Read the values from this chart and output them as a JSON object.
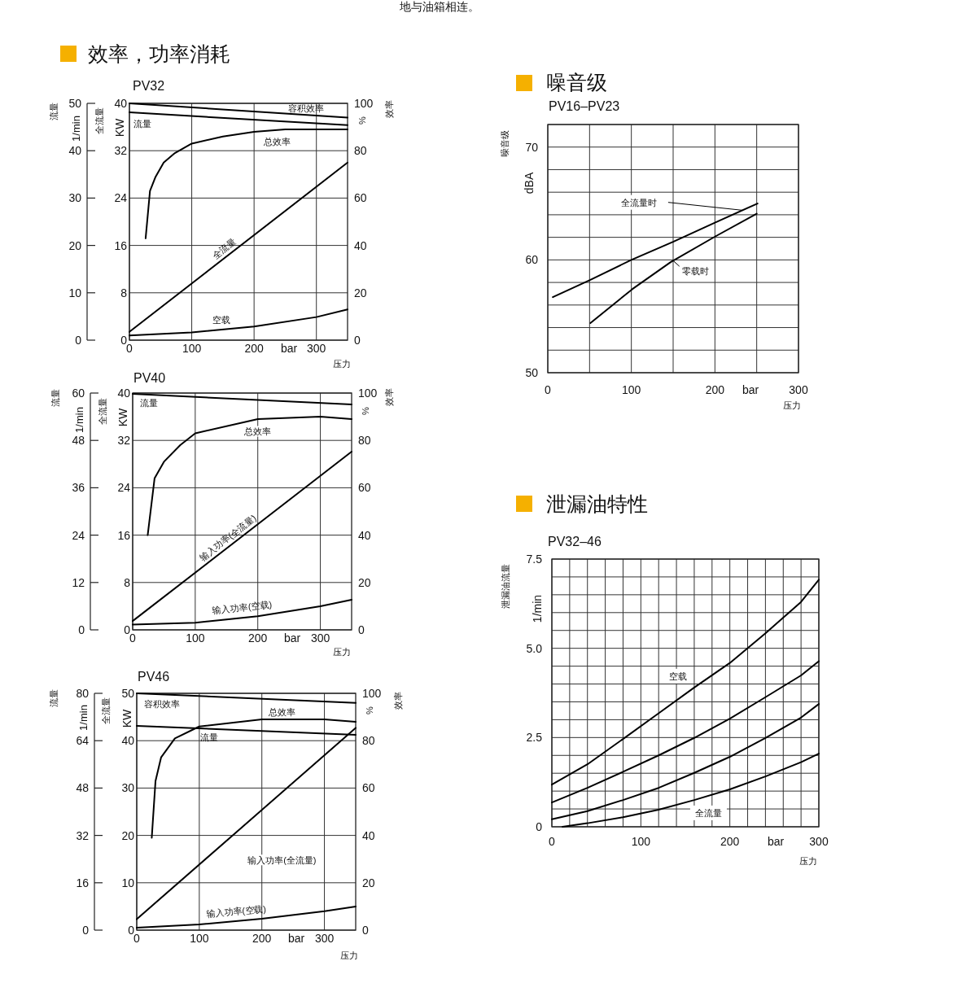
{
  "chart_data": [
    {
      "type": "line",
      "title": "效率，功率消耗",
      "subtitle": "PV32",
      "xlabel": "bar",
      "ylabel": "KW",
      "y2label": "%",
      "y3label": "1/min",
      "annotations": [
        "地与油箱相连。",
        "流量",
        "全流量",
        "效率",
        "压力"
      ],
      "grid": true,
      "xlim": [
        0,
        350
      ],
      "xticks": [
        0,
        100,
        200,
        300
      ],
      "ylim": [
        0,
        40
      ],
      "yticks": [
        0,
        8,
        16,
        24,
        32,
        40
      ],
      "y2lim": [
        0,
        100
      ],
      "y2ticks": [
        0,
        20,
        40,
        60,
        80,
        100
      ],
      "y3lim": [
        0,
        50
      ],
      "y3ticks": [
        0,
        10,
        20,
        30,
        40,
        50
      ],
      "series": [
        {
          "name": "容积效率",
          "color": "#000000",
          "axis": "y2",
          "x": [
            0,
            350
          ],
          "values": [
            100,
            94
          ]
        },
        {
          "name": "流量",
          "color": "#000000",
          "axis": "y3",
          "x": [
            0,
            350
          ],
          "values": [
            48.1,
            45.4
          ]
        },
        {
          "name": "总效率",
          "color": "#000000",
          "axis": "y2",
          "x": [
            26,
            33,
            42,
            55,
            73,
            100,
            150,
            200,
            250,
            300,
            350
          ],
          "values": [
            43,
            63,
            69,
            75,
            79,
            83,
            86,
            88,
            89,
            89,
            89
          ]
        },
        {
          "name": "全流量",
          "color": "#000000",
          "axis": "y",
          "x": [
            0,
            350
          ],
          "values": [
            1.4,
            30
          ]
        },
        {
          "name": "空载",
          "color": "#000000",
          "axis": "y",
          "x": [
            0,
            100,
            200,
            300,
            350
          ],
          "values": [
            0.8,
            1.3,
            2.3,
            3.9,
            5.2
          ]
        }
      ]
    },
    {
      "type": "line",
      "subtitle": "PV40",
      "xlabel": "bar",
      "ylabel": "KW",
      "y2label": "%",
      "y3label": "1/min",
      "annotations": [
        "流量",
        "全流量",
        "效率",
        "压力"
      ],
      "grid": true,
      "xlim": [
        0,
        350
      ],
      "xticks": [
        0,
        100,
        200,
        300
      ],
      "ylim": [
        0,
        40
      ],
      "yticks": [
        0,
        8,
        16,
        24,
        32,
        40
      ],
      "y2lim": [
        0,
        100
      ],
      "y2ticks": [
        0,
        20,
        40,
        60,
        80,
        100
      ],
      "y3lim": [
        0,
        60
      ],
      "y3ticks": [
        0,
        12,
        24,
        36,
        48,
        60
      ],
      "series": [
        {
          "name": "流量",
          "color": "#000000",
          "axis": "y3",
          "x": [
            0,
            350
          ],
          "values": [
            59.8,
            57.1
          ]
        },
        {
          "name": "总效率",
          "color": "#000000",
          "axis": "y2",
          "x": [
            24,
            35,
            50,
            76,
            100,
            200,
            300,
            350
          ],
          "values": [
            40,
            64,
            71,
            78,
            83,
            89,
            90,
            89
          ]
        },
        {
          "name": "输入功率(全流量)",
          "color": "#000000",
          "axis": "y",
          "x": [
            0,
            350
          ],
          "values": [
            1.5,
            30.1
          ]
        },
        {
          "name": "输入功率(空载)",
          "color": "#000000",
          "axis": "y",
          "x": [
            0,
            100,
            200,
            300,
            350
          ],
          "values": [
            0.9,
            1.2,
            2.3,
            4.0,
            5.1
          ]
        }
      ]
    },
    {
      "type": "line",
      "subtitle": "PV46",
      "xlabel": "bar",
      "ylabel": "KW",
      "y2label": "%",
      "y3label": "1/min",
      "annotations": [
        "流量",
        "全流量",
        "效率",
        "压力"
      ],
      "grid": true,
      "xlim": [
        0,
        350
      ],
      "xticks": [
        0,
        100,
        200,
        300
      ],
      "ylim": [
        0,
        50
      ],
      "yticks": [
        0,
        10,
        20,
        30,
        40,
        50
      ],
      "y2lim": [
        0,
        100
      ],
      "y2ticks": [
        0,
        20,
        40,
        60,
        80,
        100
      ],
      "y3lim": [
        0,
        80
      ],
      "y3ticks": [
        0,
        16,
        32,
        48,
        64,
        80
      ],
      "series": [
        {
          "name": "容积效率",
          "color": "#000000",
          "axis": "y2",
          "x": [
            0,
            350
          ],
          "values": [
            100,
            96
          ]
        },
        {
          "name": "流量",
          "color": "#000000",
          "axis": "y3",
          "x": [
            0,
            350
          ],
          "values": [
            69,
            66
          ]
        },
        {
          "name": "总效率",
          "color": "#000000",
          "axis": "y2",
          "x": [
            24,
            30,
            39,
            61,
            100,
            200,
            300,
            350
          ],
          "values": [
            39,
            63,
            73,
            81,
            86,
            89,
            89,
            88
          ]
        },
        {
          "name": "输入功率(全流量)",
          "color": "#000000",
          "axis": "y",
          "x": [
            0,
            350
          ],
          "values": [
            2.3,
            42.7
          ]
        },
        {
          "name": "输入功率(空载)",
          "color": "#000000",
          "axis": "y",
          "x": [
            0,
            100,
            200,
            300,
            350
          ],
          "values": [
            0.5,
            1.2,
            2.4,
            4.0,
            5.0
          ]
        }
      ]
    },
    {
      "type": "line",
      "title": "噪音级",
      "subtitle": "PV16–PV23",
      "xlabel": "bar",
      "ylabel": "dBA",
      "annotations": [
        "噪音级",
        "压力"
      ],
      "grid": true,
      "xlim": [
        0,
        300
      ],
      "xticks": [
        0,
        {
          "value": 50,
          "label": null
        },
        100,
        {
          "value": 150,
          "label": null
        },
        200,
        {
          "value": 250,
          "label": null
        },
        300
      ],
      "ylim": [
        50,
        72
      ],
      "yticks": [
        50,
        {
          "value": 52,
          "label": null
        },
        {
          "value": 54,
          "label": null
        },
        {
          "value": 56,
          "label": null
        },
        {
          "value": 58,
          "label": null
        },
        60,
        {
          "value": 62,
          "label": null
        },
        {
          "value": 64,
          "label": null
        },
        {
          "value": 66,
          "label": null
        },
        {
          "value": 68,
          "label": null
        },
        70,
        {
          "value": 72,
          "label": null
        }
      ],
      "series": [
        {
          "name": "全流量时",
          "color": "#000000",
          "x": [
            6,
            50,
            100,
            150,
            200,
            251
          ],
          "values": [
            56.7,
            58.2,
            60.0,
            61.6,
            63.3,
            65.0
          ]
        },
        {
          "name": "零载时",
          "color": "#000000",
          "x": [
            51,
            101,
            147,
            201,
            250
          ],
          "values": [
            54.4,
            57.4,
            59.8,
            62.1,
            64.1
          ]
        }
      ]
    },
    {
      "type": "line",
      "title": "泄漏油特性",
      "subtitle": "PV32–46",
      "xlabel": "bar",
      "ylabel": "1/min",
      "annotations": [
        "泄漏油流量",
        "压力"
      ],
      "grid": true,
      "xlim": [
        0,
        300
      ],
      "xticks": [
        0,
        {
          "value": 20,
          "label": null
        },
        {
          "value": 40,
          "label": null
        },
        {
          "value": 60,
          "label": null
        },
        {
          "value": 80,
          "label": null
        },
        100,
        {
          "value": 120,
          "label": null
        },
        {
          "value": 140,
          "label": null
        },
        {
          "value": 160,
          "label": null
        },
        {
          "value": 180,
          "label": null
        },
        200,
        {
          "value": 220,
          "label": null
        },
        {
          "value": 240,
          "label": null
        },
        {
          "value": 260,
          "label": null
        },
        {
          "value": 280,
          "label": null
        },
        300
      ],
      "ylim": [
        0,
        7.5
      ],
      "yticks": [
        0,
        {
          "value": 0.5,
          "label": null
        },
        {
          "value": 1,
          "label": null
        },
        {
          "value": 1.5,
          "label": null
        },
        {
          "value": 2,
          "label": null
        },
        2.5,
        {
          "value": 3,
          "label": null
        },
        {
          "value": 3.5,
          "label": null
        },
        {
          "value": 4,
          "label": null
        },
        {
          "value": 4.5,
          "label": null
        },
        {
          "value": 5,
          "label": "5.0"
        },
        {
          "value": 5.5,
          "label": null
        },
        {
          "value": 6,
          "label": null
        },
        {
          "value": 6.5,
          "label": null
        },
        {
          "value": 7,
          "label": null
        },
        7.5
      ],
      "series": [
        {
          "name": "空载",
          "color": "#000000",
          "x": [
            0,
            40,
            80,
            120,
            160,
            200,
            240,
            280,
            300
          ],
          "values": [
            1.18,
            1.75,
            2.46,
            3.18,
            3.9,
            4.59,
            5.42,
            6.3,
            6.92
          ]
        },
        {
          "color": "#000000",
          "x": [
            0,
            40,
            80,
            120,
            160,
            200,
            240,
            280,
            300
          ],
          "values": [
            0.68,
            1.09,
            1.54,
            2.0,
            2.49,
            3.03,
            3.63,
            4.24,
            4.64
          ]
        },
        {
          "color": "#000000",
          "x": [
            0,
            40,
            80,
            120,
            160,
            200,
            240,
            280,
            300
          ],
          "values": [
            0.21,
            0.44,
            0.75,
            1.09,
            1.51,
            1.96,
            2.49,
            3.06,
            3.44
          ]
        },
        {
          "name": "全流量",
          "color": "#000000",
          "x": [
            12,
            40,
            80,
            120,
            160,
            200,
            240,
            280,
            300
          ],
          "values": [
            0.0,
            0.1,
            0.27,
            0.48,
            0.75,
            1.05,
            1.41,
            1.81,
            2.05
          ]
        }
      ]
    }
  ]
}
